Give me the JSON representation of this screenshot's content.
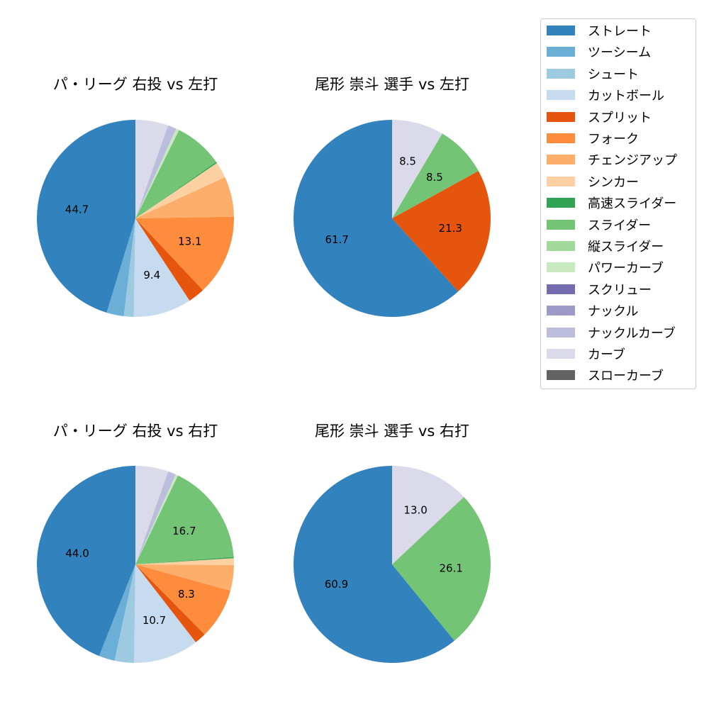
{
  "legend": {
    "items": [
      {
        "label": "ストレート",
        "color": "#3182bd"
      },
      {
        "label": "ツーシーム",
        "color": "#6baed6"
      },
      {
        "label": "シュート",
        "color": "#9ecae1"
      },
      {
        "label": "カットボール",
        "color": "#c6dbef"
      },
      {
        "label": "スプリット",
        "color": "#e6550d"
      },
      {
        "label": "フォーク",
        "color": "#fd8d3c"
      },
      {
        "label": "チェンジアップ",
        "color": "#fdae6b"
      },
      {
        "label": "シンカー",
        "color": "#fdd0a2"
      },
      {
        "label": "高速スライダー",
        "color": "#31a354"
      },
      {
        "label": "スライダー",
        "color": "#74c476"
      },
      {
        "label": "縦スライダー",
        "color": "#a1d99b"
      },
      {
        "label": "パワーカーブ",
        "color": "#c7e9c0"
      },
      {
        "label": "スクリュー",
        "color": "#756bb1"
      },
      {
        "label": "ナックル",
        "color": "#9e9ac8"
      },
      {
        "label": "ナックルカーブ",
        "color": "#bcbddc"
      },
      {
        "label": "カーブ",
        "color": "#dadaeb"
      },
      {
        "label": "スローカーブ",
        "color": "#636363"
      }
    ]
  },
  "chart_data": [
    {
      "type": "pie",
      "title": "パ・リーグ 右投 vs 左打",
      "slices": [
        {
          "category": "ストレート",
          "value": 44.7,
          "label": "44.7"
        },
        {
          "category": "ツーシーム",
          "value": 2.8,
          "label": ""
        },
        {
          "category": "シュート",
          "value": 1.6,
          "label": ""
        },
        {
          "category": "カットボール",
          "value": 9.4,
          "label": "9.4"
        },
        {
          "category": "スプリット",
          "value": 2.7,
          "label": ""
        },
        {
          "category": "フォーク",
          "value": 13.1,
          "label": "13.1"
        },
        {
          "category": "チェンジアップ",
          "value": 6.5,
          "label": ""
        },
        {
          "category": "シンカー",
          "value": 2.6,
          "label": ""
        },
        {
          "category": "高速スライダー",
          "value": 0.2,
          "label": ""
        },
        {
          "category": "スライダー",
          "value": 7.9,
          "label": ""
        },
        {
          "category": "パワーカーブ",
          "value": 0.5,
          "label": ""
        },
        {
          "category": "ナックルカーブ",
          "value": 1.4,
          "label": ""
        },
        {
          "category": "カーブ",
          "value": 5.3,
          "label": ""
        }
      ]
    },
    {
      "type": "pie",
      "title": "尾形 崇斗 選手 vs 左打",
      "slices": [
        {
          "category": "ストレート",
          "value": 61.7,
          "label": "61.7"
        },
        {
          "category": "スプリット",
          "value": 21.3,
          "label": "21.3"
        },
        {
          "category": "スライダー",
          "value": 8.5,
          "label": "8.5"
        },
        {
          "category": "カーブ",
          "value": 8.5,
          "label": "8.5"
        }
      ]
    },
    {
      "type": "pie",
      "title": "パ・リーグ 右投 vs 右打",
      "slices": [
        {
          "category": "ストレート",
          "value": 44.0,
          "label": "44.0"
        },
        {
          "category": "ツーシーム",
          "value": 2.6,
          "label": ""
        },
        {
          "category": "シュート",
          "value": 3.2,
          "label": ""
        },
        {
          "category": "カットボール",
          "value": 10.7,
          "label": "10.7"
        },
        {
          "category": "スプリット",
          "value": 1.9,
          "label": ""
        },
        {
          "category": "フォーク",
          "value": 8.3,
          "label": "8.3"
        },
        {
          "category": "チェンジアップ",
          "value": 4.2,
          "label": ""
        },
        {
          "category": "シンカー",
          "value": 1.1,
          "label": ""
        },
        {
          "category": "高速スライダー",
          "value": 0.2,
          "label": ""
        },
        {
          "category": "スライダー",
          "value": 16.7,
          "label": "16.7"
        },
        {
          "category": "パワーカーブ",
          "value": 0.4,
          "label": ""
        },
        {
          "category": "ナックルカーブ",
          "value": 1.3,
          "label": ""
        },
        {
          "category": "カーブ",
          "value": 5.4,
          "label": ""
        }
      ]
    },
    {
      "type": "pie",
      "title": "尾形 崇斗 選手 vs 右打",
      "slices": [
        {
          "category": "ストレート",
          "value": 60.9,
          "label": "60.9"
        },
        {
          "category": "スライダー",
          "value": 26.1,
          "label": "26.1"
        },
        {
          "category": "カーブ",
          "value": 13.0,
          "label": "13.0"
        }
      ]
    }
  ]
}
